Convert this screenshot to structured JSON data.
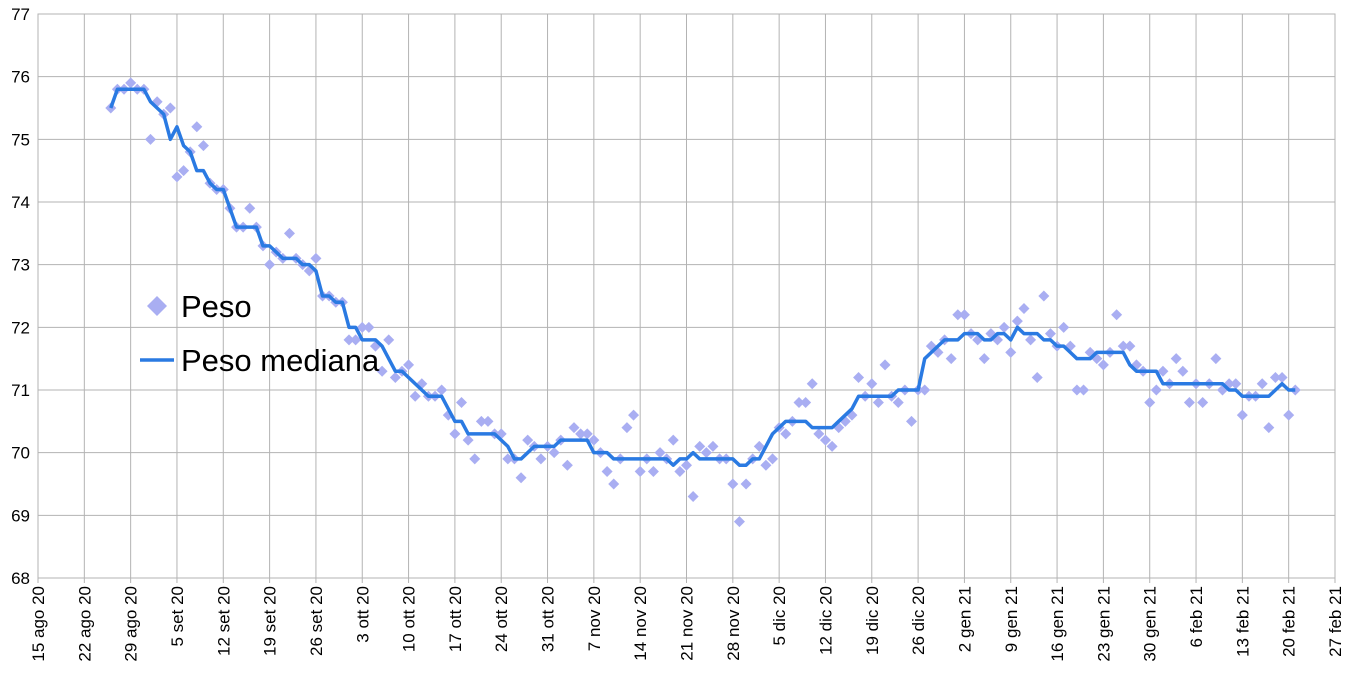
{
  "chart_data": {
    "type": "line",
    "legend": "left",
    "grid": true,
    "xlim": [
      "2020-08-15",
      "2021-02-27"
    ],
    "ylim": [
      68,
      77
    ],
    "yticks": [
      68,
      69,
      70,
      71,
      72,
      73,
      74,
      75,
      76,
      77
    ],
    "xticks": [
      {
        "value": "2020-08-15",
        "label": "15 ago 20"
      },
      {
        "value": "2020-08-22",
        "label": "22 ago 20"
      },
      {
        "value": "2020-08-29",
        "label": "29 ago 20"
      },
      {
        "value": "2020-09-05",
        "label": "5 set 20"
      },
      {
        "value": "2020-09-12",
        "label": "12 set 20"
      },
      {
        "value": "2020-09-19",
        "label": "19 set 20"
      },
      {
        "value": "2020-09-26",
        "label": "26 set 20"
      },
      {
        "value": "2020-10-03",
        "label": "3 ott 20"
      },
      {
        "value": "2020-10-10",
        "label": "10 ott 20"
      },
      {
        "value": "2020-10-17",
        "label": "17 ott 20"
      },
      {
        "value": "2020-10-24",
        "label": "24 ott 20"
      },
      {
        "value": "2020-10-31",
        "label": "31 ott 20"
      },
      {
        "value": "2020-11-07",
        "label": "7 nov 20"
      },
      {
        "value": "2020-11-14",
        "label": "14 nov 20"
      },
      {
        "value": "2020-11-21",
        "label": "21 nov 20"
      },
      {
        "value": "2020-11-28",
        "label": "28 nov 20"
      },
      {
        "value": "2020-12-05",
        "label": "5 dic 20"
      },
      {
        "value": "2020-12-12",
        "label": "12 dic 20"
      },
      {
        "value": "2020-12-19",
        "label": "19 dic 20"
      },
      {
        "value": "2020-12-26",
        "label": "26 dic 20"
      },
      {
        "value": "2021-01-02",
        "label": "2 gen 21"
      },
      {
        "value": "2021-01-09",
        "label": "9 gen 21"
      },
      {
        "value": "2021-01-16",
        "label": "16 gen 21"
      },
      {
        "value": "2021-01-23",
        "label": "23 gen 21"
      },
      {
        "value": "2021-01-30",
        "label": "30 gen 21"
      },
      {
        "value": "2021-02-06",
        "label": "6 feb 21"
      },
      {
        "value": "2021-02-13",
        "label": "13 feb 21"
      },
      {
        "value": "2021-02-20",
        "label": "20 feb 21"
      },
      {
        "value": "2021-02-27",
        "label": "27 feb 21"
      }
    ],
    "x": [
      "2020-08-26",
      "2020-08-27",
      "2020-08-28",
      "2020-08-29",
      "2020-08-30",
      "2020-08-31",
      "2020-09-01",
      "2020-09-02",
      "2020-09-03",
      "2020-09-04",
      "2020-09-05",
      "2020-09-06",
      "2020-09-07",
      "2020-09-08",
      "2020-09-09",
      "2020-09-10",
      "2020-09-11",
      "2020-09-12",
      "2020-09-13",
      "2020-09-14",
      "2020-09-15",
      "2020-09-16",
      "2020-09-17",
      "2020-09-18",
      "2020-09-19",
      "2020-09-20",
      "2020-09-21",
      "2020-09-22",
      "2020-09-23",
      "2020-09-24",
      "2020-09-25",
      "2020-09-26",
      "2020-09-27",
      "2020-09-28",
      "2020-09-29",
      "2020-09-30",
      "2020-10-01",
      "2020-10-02",
      "2020-10-03",
      "2020-10-04",
      "2020-10-05",
      "2020-10-06",
      "2020-10-07",
      "2020-10-08",
      "2020-10-09",
      "2020-10-10",
      "2020-10-11",
      "2020-10-12",
      "2020-10-13",
      "2020-10-14",
      "2020-10-15",
      "2020-10-16",
      "2020-10-17",
      "2020-10-18",
      "2020-10-19",
      "2020-10-20",
      "2020-10-21",
      "2020-10-22",
      "2020-10-23",
      "2020-10-24",
      "2020-10-25",
      "2020-10-26",
      "2020-10-27",
      "2020-10-28",
      "2020-10-29",
      "2020-10-30",
      "2020-10-31",
      "2020-11-01",
      "2020-11-02",
      "2020-11-03",
      "2020-11-04",
      "2020-11-05",
      "2020-11-06",
      "2020-11-07",
      "2020-11-08",
      "2020-11-09",
      "2020-11-10",
      "2020-11-11",
      "2020-11-12",
      "2020-11-13",
      "2020-11-14",
      "2020-11-15",
      "2020-11-16",
      "2020-11-17",
      "2020-11-18",
      "2020-11-19",
      "2020-11-20",
      "2020-11-21",
      "2020-11-22",
      "2020-11-23",
      "2020-11-24",
      "2020-11-25",
      "2020-11-26",
      "2020-11-27",
      "2020-11-28",
      "2020-11-29",
      "2020-11-30",
      "2020-12-01",
      "2020-12-02",
      "2020-12-03",
      "2020-12-04",
      "2020-12-05",
      "2020-12-06",
      "2020-12-07",
      "2020-12-08",
      "2020-12-09",
      "2020-12-10",
      "2020-12-11",
      "2020-12-12",
      "2020-12-13",
      "2020-12-14",
      "2020-12-15",
      "2020-12-16",
      "2020-12-17",
      "2020-12-18",
      "2020-12-19",
      "2020-12-20",
      "2020-12-21",
      "2020-12-22",
      "2020-12-23",
      "2020-12-24",
      "2020-12-25",
      "2020-12-26",
      "2020-12-27",
      "2020-12-28",
      "2020-12-29",
      "2020-12-30",
      "2020-12-31",
      "2021-01-01",
      "2021-01-02",
      "2021-01-03",
      "2021-01-04",
      "2021-01-05",
      "2021-01-06",
      "2021-01-07",
      "2021-01-08",
      "2021-01-09",
      "2021-01-10",
      "2021-01-11",
      "2021-01-12",
      "2021-01-13",
      "2021-01-14",
      "2021-01-15",
      "2021-01-16",
      "2021-01-17",
      "2021-01-18",
      "2021-01-19",
      "2021-01-20",
      "2021-01-21",
      "2021-01-22",
      "2021-01-23",
      "2021-01-24",
      "2021-01-25",
      "2021-01-26",
      "2021-01-27",
      "2021-01-28",
      "2021-01-29",
      "2021-01-30",
      "2021-01-31",
      "2021-02-01",
      "2021-02-02",
      "2021-02-03",
      "2021-02-04",
      "2021-02-05",
      "2021-02-06",
      "2021-02-07",
      "2021-02-08",
      "2021-02-09",
      "2021-02-10",
      "2021-02-11",
      "2021-02-12",
      "2021-02-13",
      "2021-02-14",
      "2021-02-15",
      "2021-02-16",
      "2021-02-17",
      "2021-02-18",
      "2021-02-19",
      "2021-02-20",
      "2021-02-21"
    ],
    "series": [
      {
        "name": "Peso",
        "type": "scatter",
        "color": "#a9aef2",
        "values": [
          75.5,
          75.8,
          75.8,
          75.9,
          75.8,
          75.8,
          75.0,
          75.6,
          75.4,
          75.5,
          74.4,
          74.5,
          74.8,
          75.2,
          74.9,
          74.3,
          74.2,
          74.2,
          73.9,
          73.6,
          73.6,
          73.9,
          73.6,
          73.3,
          73.0,
          73.2,
          73.1,
          73.5,
          73.1,
          73.0,
          72.9,
          73.1,
          72.5,
          72.5,
          72.4,
          72.4,
          71.8,
          71.8,
          72.0,
          72.0,
          71.7,
          71.3,
          71.8,
          71.2,
          71.3,
          71.4,
          70.9,
          71.1,
          70.9,
          70.9,
          71.0,
          70.6,
          70.3,
          70.8,
          70.2,
          69.9,
          70.5,
          70.5,
          70.3,
          70.3,
          69.9,
          69.9,
          69.6,
          70.2,
          70.1,
          69.9,
          70.1,
          70.0,
          70.2,
          69.8,
          70.4,
          70.3,
          70.3,
          70.2,
          70.0,
          69.7,
          69.5,
          69.9,
          70.4,
          70.6,
          69.7,
          69.9,
          69.7,
          70.0,
          69.9,
          70.2,
          69.7,
          69.8,
          69.3,
          70.1,
          70.0,
          70.1,
          69.9,
          69.9,
          69.5,
          68.9,
          69.5,
          69.9,
          70.1,
          69.8,
          69.9,
          70.4,
          70.3,
          70.5,
          70.8,
          70.8,
          71.1,
          70.3,
          70.2,
          70.1,
          70.4,
          70.5,
          70.6,
          71.2,
          70.9,
          71.1,
          70.8,
          71.4,
          70.9,
          70.8,
          71.0,
          70.5,
          71.0,
          71.0,
          71.7,
          71.6,
          71.8,
          71.5,
          72.2,
          72.2,
          71.9,
          71.8,
          71.5,
          71.9,
          71.8,
          72.0,
          71.6,
          72.1,
          72.3,
          71.8,
          71.2,
          72.5,
          71.9,
          71.7,
          72.0,
          71.7,
          71.0,
          71.0,
          71.6,
          71.5,
          71.4,
          71.6,
          72.2,
          71.7,
          71.7,
          71.4,
          71.3,
          70.8,
          71.0,
          71.3,
          71.1,
          71.5,
          71.3,
          70.8,
          71.1,
          70.8,
          71.1,
          71.5,
          71.0,
          71.1,
          71.1,
          70.6,
          70.9,
          70.9,
          71.1,
          70.4,
          71.2,
          71.2,
          70.6,
          71.0
        ]
      },
      {
        "name": "Peso mediana",
        "type": "line",
        "color": "#2a7ae2",
        "values": [
          75.5,
          75.8,
          75.8,
          75.8,
          75.8,
          75.8,
          75.6,
          75.5,
          75.4,
          75.0,
          75.2,
          74.9,
          74.8,
          74.5,
          74.5,
          74.3,
          74.2,
          74.2,
          73.9,
          73.6,
          73.6,
          73.6,
          73.6,
          73.3,
          73.3,
          73.2,
          73.1,
          73.1,
          73.1,
          73.0,
          73.0,
          72.9,
          72.5,
          72.5,
          72.4,
          72.4,
          72.0,
          72.0,
          71.8,
          71.8,
          71.8,
          71.7,
          71.5,
          71.3,
          71.3,
          71.2,
          71.1,
          71.0,
          70.9,
          70.9,
          70.9,
          70.7,
          70.5,
          70.5,
          70.3,
          70.3,
          70.3,
          70.3,
          70.3,
          70.2,
          70.1,
          69.9,
          69.9,
          70.0,
          70.1,
          70.1,
          70.1,
          70.1,
          70.2,
          70.2,
          70.2,
          70.2,
          70.2,
          70.0,
          70.0,
          70.0,
          69.9,
          69.9,
          69.9,
          69.9,
          69.9,
          69.9,
          69.9,
          69.9,
          69.9,
          69.8,
          69.9,
          69.9,
          70.0,
          69.9,
          69.9,
          69.9,
          69.9,
          69.9,
          69.9,
          69.8,
          69.8,
          69.9,
          69.9,
          70.1,
          70.3,
          70.4,
          70.5,
          70.5,
          70.5,
          70.5,
          70.4,
          70.4,
          70.4,
          70.4,
          70.5,
          70.6,
          70.7,
          70.9,
          70.9,
          70.9,
          70.9,
          70.9,
          70.9,
          71.0,
          71.0,
          71.0,
          71.0,
          71.5,
          71.6,
          71.7,
          71.8,
          71.8,
          71.8,
          71.9,
          71.9,
          71.9,
          71.8,
          71.8,
          71.9,
          71.9,
          71.8,
          72.0,
          71.9,
          71.9,
          71.9,
          71.8,
          71.8,
          71.7,
          71.7,
          71.6,
          71.5,
          71.5,
          71.5,
          71.6,
          71.6,
          71.6,
          71.6,
          71.6,
          71.4,
          71.3,
          71.3,
          71.3,
          71.3,
          71.1,
          71.1,
          71.1,
          71.1,
          71.1,
          71.1,
          71.1,
          71.1,
          71.1,
          71.1,
          71.0,
          71.0,
          70.9,
          70.9,
          70.9,
          70.9,
          70.9,
          71.0,
          71.1,
          71.0,
          71.0
        ]
      }
    ]
  }
}
